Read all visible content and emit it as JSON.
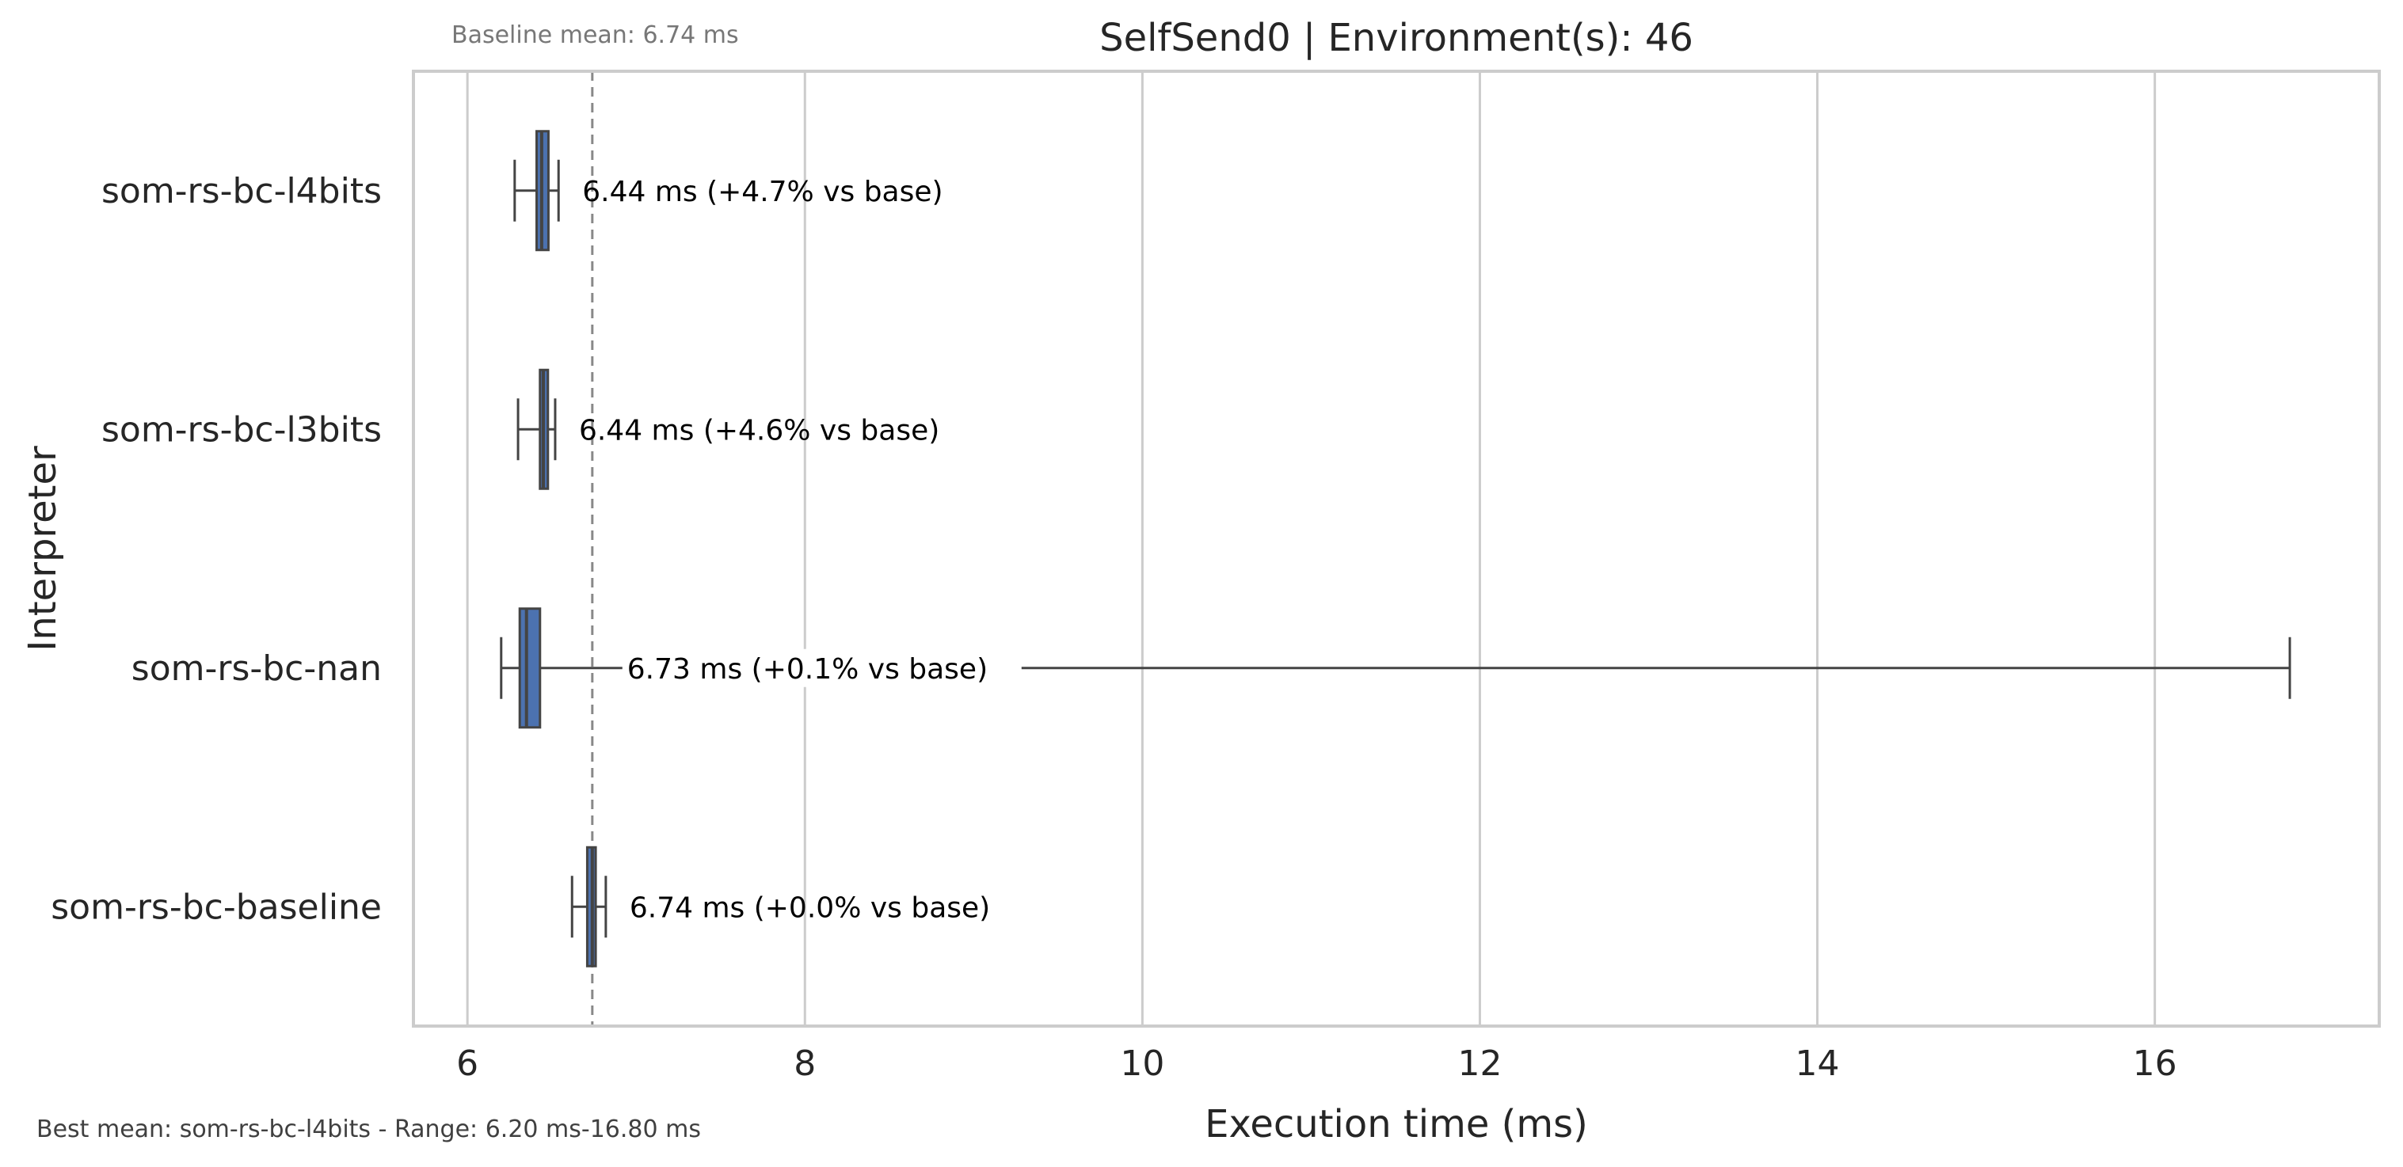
{
  "chart_data": {
    "type": "box",
    "orientation": "horizontal",
    "title": "SelfSend0 | Environment(s): 46",
    "xlabel": "Execution time (ms)",
    "ylabel": "Interpreter",
    "xlim": [
      5.68,
      17.33
    ],
    "xticks": [
      "6",
      "8",
      "10",
      "12",
      "14",
      "16"
    ],
    "xtick_values": [
      6,
      8,
      10,
      12,
      14,
      16
    ],
    "grid": "vertical",
    "baseline_note": "Baseline mean: 6.74 ms",
    "baseline_value": 6.74,
    "footer_note": "Best mean: som-rs-bc-l4bits - Range: 6.20 ms-16.80 ms",
    "box_color": "#4c72b0",
    "line_color": "#444444",
    "series": [
      {
        "category": "som-rs-bc-l4bits",
        "whisker_low": 6.28,
        "q1": 6.41,
        "median": 6.44,
        "q3": 6.48,
        "whisker_high": 6.54,
        "annotation": "6.44 ms  (+4.7% vs base)"
      },
      {
        "category": "som-rs-bc-l3bits",
        "whisker_low": 6.3,
        "q1": 6.43,
        "median": 6.45,
        "q3": 6.47,
        "whisker_high": 6.52,
        "annotation": "6.44 ms  (+4.6% vs base)"
      },
      {
        "category": "som-rs-bc-nan",
        "whisker_low": 6.2,
        "q1": 6.31,
        "median": 6.35,
        "q3": 6.43,
        "whisker_high": 16.8,
        "annotation": "6.73 ms  (+0.1% vs base)"
      },
      {
        "category": "som-rs-bc-baseline",
        "whisker_low": 6.62,
        "q1": 6.71,
        "median": 6.74,
        "q3": 6.76,
        "whisker_high": 6.82,
        "annotation": "6.74 ms  (+0.0% vs base)"
      }
    ]
  }
}
